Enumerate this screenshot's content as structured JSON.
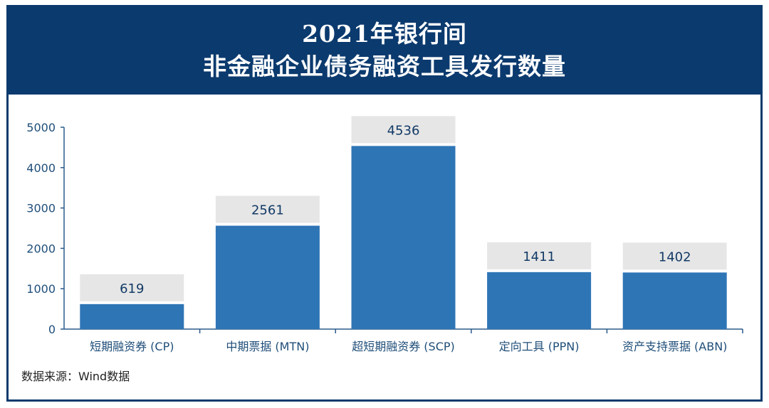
{
  "title_lines": [
    "2021年银行间",
    "非金融企业债务融资工具发行数量"
  ],
  "source": "数据来源：Wind数据",
  "colors": {
    "header_bg": "#0b3a6e",
    "bar": "#2e75b6",
    "label_box": "#e6e6e6",
    "axis": "#2b5a8c",
    "value_text": "#123a66"
  },
  "chart_data": {
    "type": "bar",
    "categories": [
      "短期融资券 (CP)",
      "中期票据 (MTN)",
      "超短期融资券 (SCP)",
      "定向工具 (PPN)",
      "资产支持票据 (ABN)"
    ],
    "values": [
      619,
      2561,
      4536,
      1411,
      1402
    ],
    "data_labels": [
      "619",
      "2561",
      "4536",
      "1411",
      "1402"
    ],
    "ylim": [
      0,
      5000
    ],
    "yticks": [
      0,
      1000,
      2000,
      3000,
      4000,
      5000
    ],
    "title": "2021年银行间 非金融企业债务融资工具发行数量",
    "xlabel": "",
    "ylabel": "",
    "grid": false,
    "legend": "none"
  }
}
